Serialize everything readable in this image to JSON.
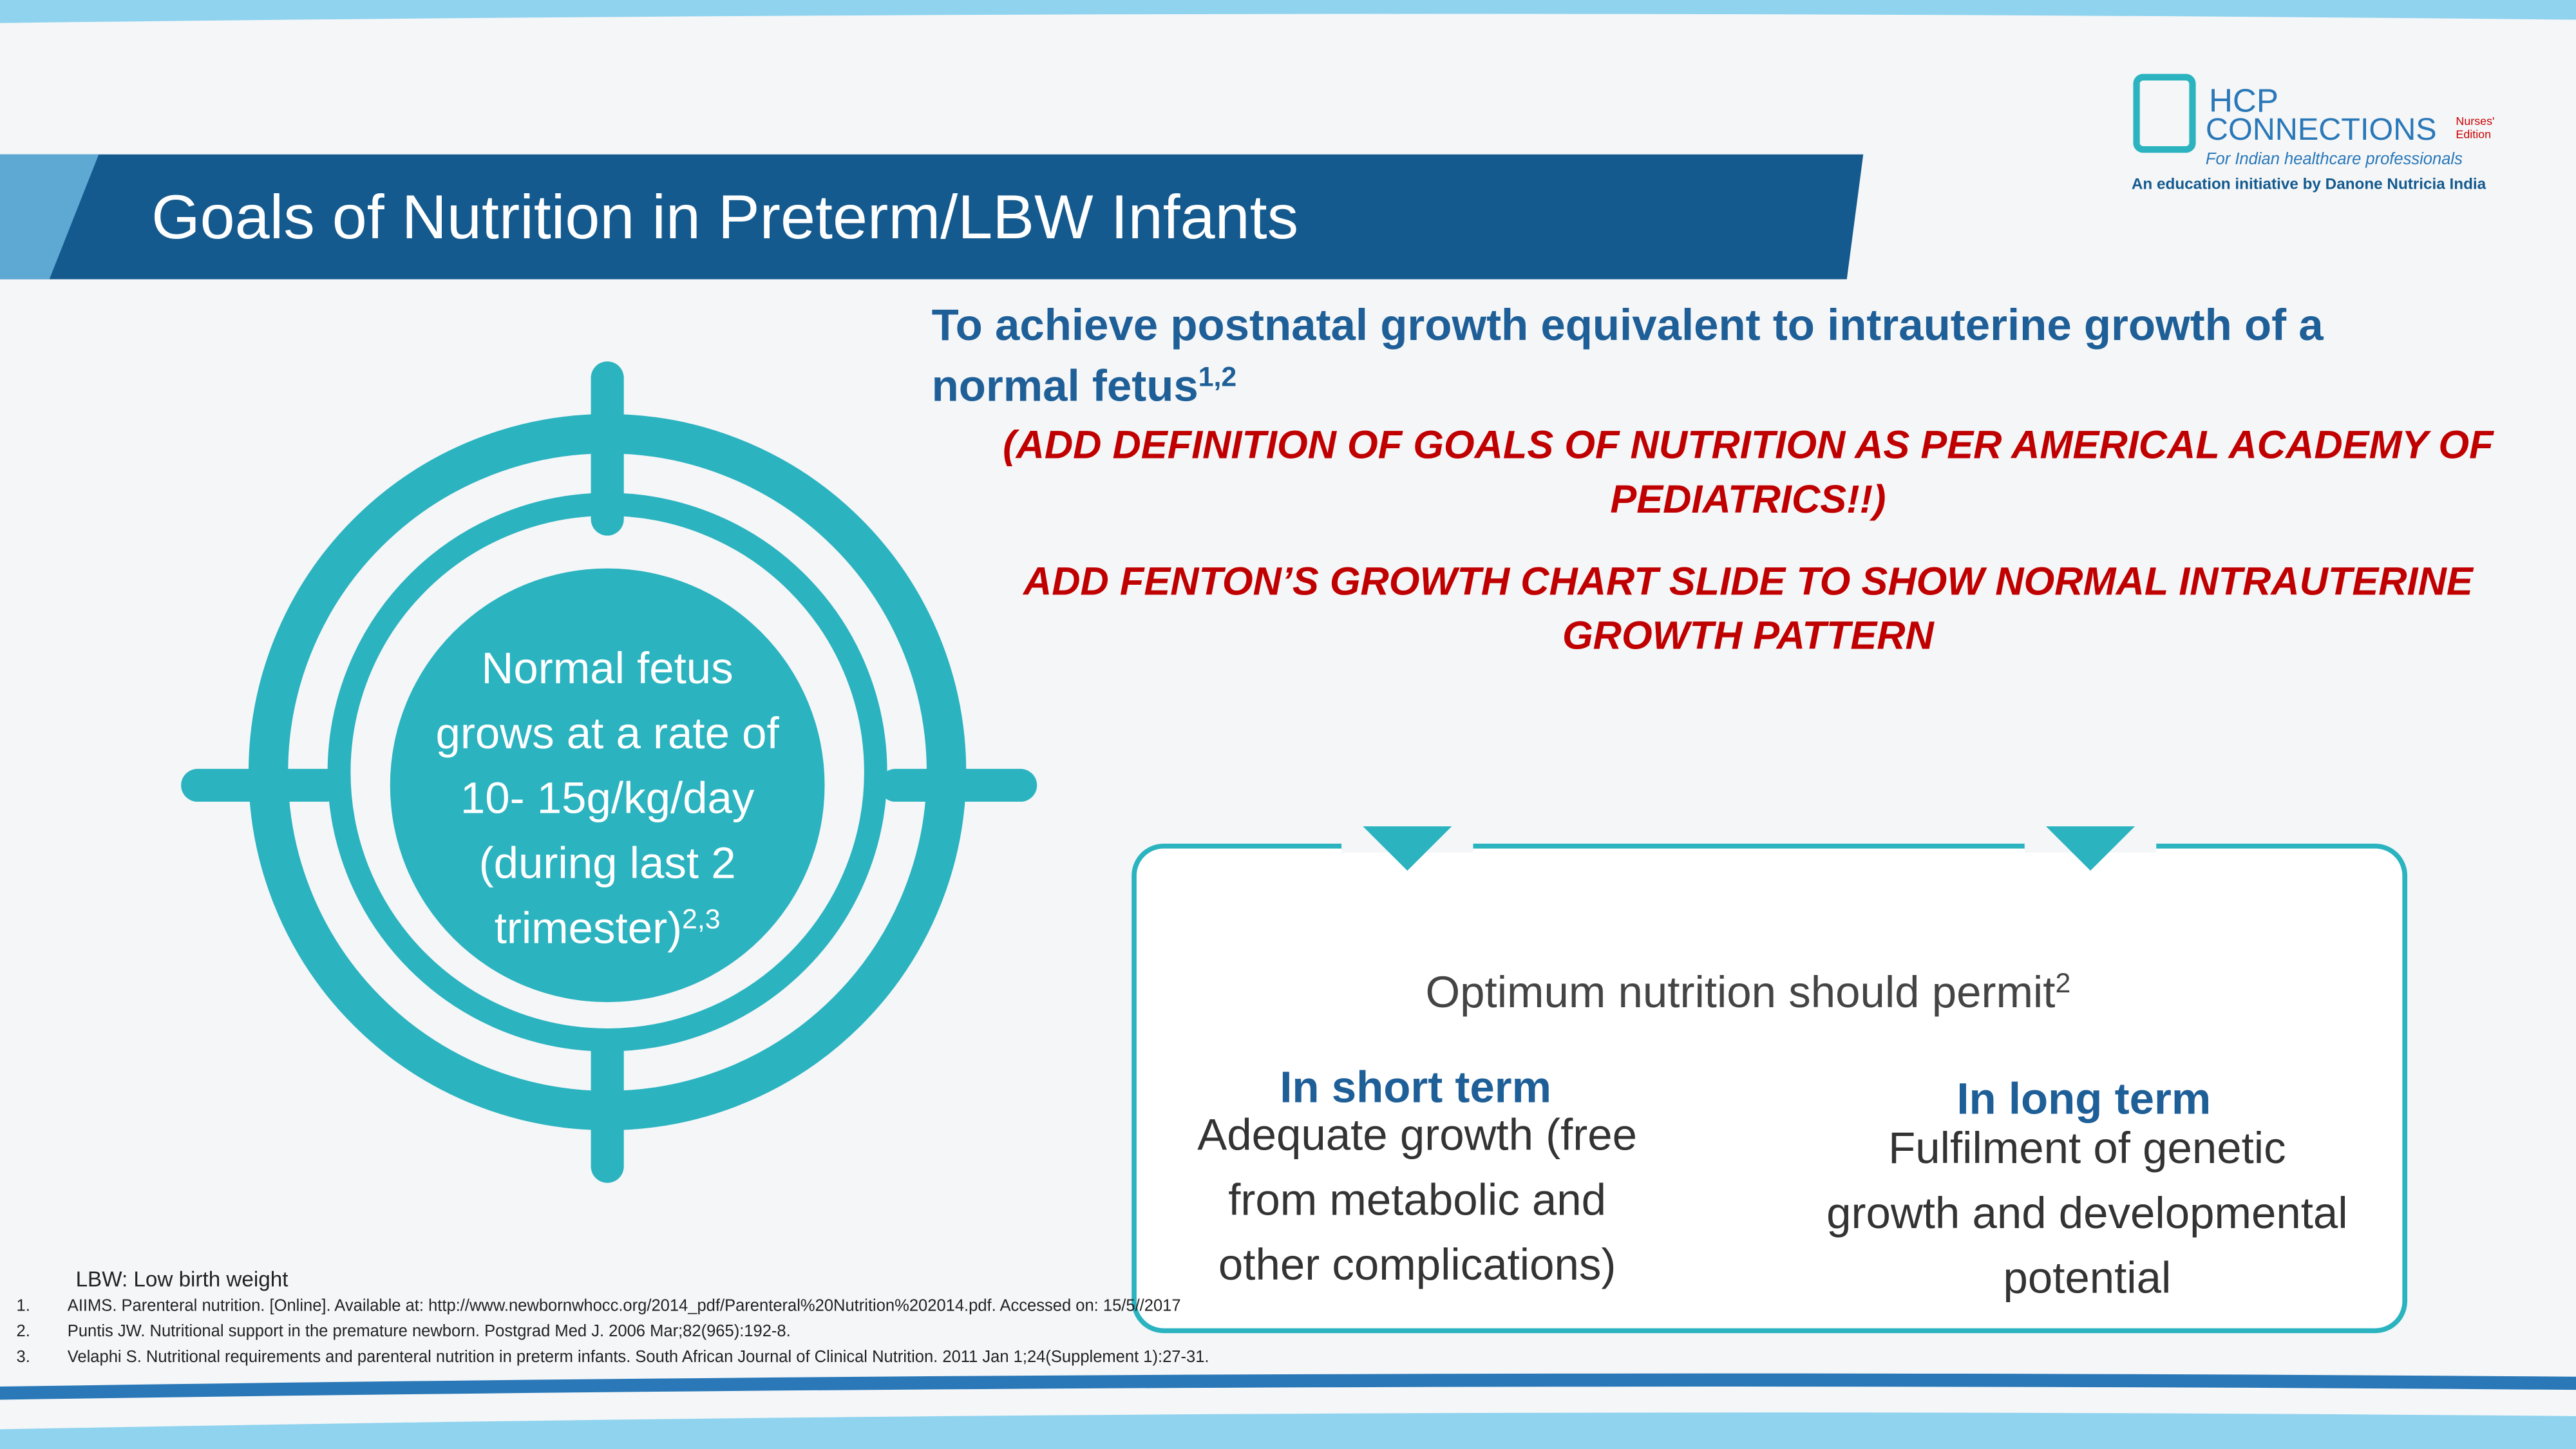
{
  "logo": {
    "brand1": "HCP",
    "brand2": "CONNECTIONS",
    "edition": [
      "Nurses'",
      "Edition"
    ],
    "tagline": "For Indian healthcare professionals",
    "initiative": "An education initiative by Danone Nutricia India"
  },
  "title": "Goals of Nutrition in Preterm/LBW Infants",
  "goal": {
    "lines": [
      "To achieve postnatal growth equivalent to intrauterine growth of a",
      "normal fetus"
    ],
    "sup": "1,2"
  },
  "notes": [
    {
      "lines": [
        "(ADD DEFINITION OF GOALS OF NUTRITION AS PER AMERICAL ACADEMY OF",
        "PEDIATRICS!!)"
      ]
    },
    {
      "lines": [
        "ADD FENTON’S GROWTH CHART SLIDE TO SHOW NORMAL INTRAUTERINE",
        "GROWTH PATTERN"
      ]
    }
  ],
  "target": {
    "lines": [
      "Normal fetus",
      "grows at a rate of",
      "10- 15g/kg/day",
      "(during last 2",
      "trimester)"
    ],
    "sup": "2,3"
  },
  "box": {
    "heading": "Optimum nutrition should permit",
    "sup": "2",
    "short": {
      "title": "In short term",
      "lines": [
        "Adequate growth (free",
        "from metabolic and",
        "other complications)"
      ]
    },
    "long": {
      "title": "In long term",
      "lines": [
        "Fulfilment of genetic",
        "growth and developmental",
        "potential"
      ]
    }
  },
  "abbreviation": "LBW: Low birth weight",
  "references": [
    {
      "num": "1.",
      "text": "AIIMS. Parenteral nutrition. [Online]. Available at: http://www.newbornwhocc.org/2014_pdf/Parenteral%20Nutrition%202014.pdf. Accessed on: 15/5//2017"
    },
    {
      "num": "2.",
      "text": "Puntis JW. Nutritional support in the premature newborn. Postgrad Med J. 2006 Mar;82(965):192-8."
    },
    {
      "num": "3.",
      "text": "Velaphi S. Nutritional requirements and parenteral nutrition in preterm infants. South African Journal of Clinical Nutrition. 2011 Jan 1;24(Supplement 1):27-31."
    }
  ]
}
